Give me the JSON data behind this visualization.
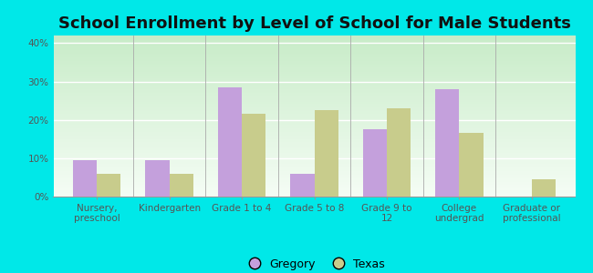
{
  "title": "School Enrollment by Level of School for Male Students",
  "categories": [
    "Nursery,\npreschool",
    "Kindergarten",
    "Grade 1 to 4",
    "Grade 5 to 8",
    "Grade 9 to\n12",
    "College\nundergrad",
    "Graduate or\nprofessional"
  ],
  "gregory": [
    9.5,
    9.5,
    28.5,
    6.0,
    17.5,
    28.0,
    0.0
  ],
  "texas": [
    6.0,
    6.0,
    21.5,
    22.5,
    23.0,
    16.5,
    4.5
  ],
  "gregory_color": "#c4a0dc",
  "texas_color": "#c8cc8c",
  "background_color": "#00e8e8",
  "bg_top": "#f0faf0",
  "bg_bottom": "#d8f0d8",
  "ylim": [
    0,
    42
  ],
  "yticks": [
    0,
    10,
    20,
    30,
    40
  ],
  "ytick_labels": [
    "0%",
    "10%",
    "20%",
    "30%",
    "40%"
  ],
  "bar_width": 0.33,
  "title_fontsize": 13,
  "tick_fontsize": 7.5,
  "legend_fontsize": 9
}
